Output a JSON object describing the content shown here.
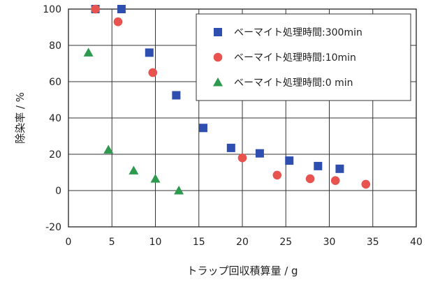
{
  "chart_data": {
    "type": "scatter",
    "title": "",
    "xlabel": "トラップ回収積算量 / g",
    "ylabel": "除染率 / %",
    "xlim": [
      0,
      40
    ],
    "ylim": [
      -20,
      100
    ],
    "xticks": [
      "0",
      "5",
      "10",
      "15",
      "20",
      "25",
      "30",
      "35",
      "40"
    ],
    "yticks": [
      "-20",
      "0",
      "20",
      "40",
      "60",
      "80",
      "100"
    ],
    "grid": true,
    "legend_position": "top-right",
    "series": [
      {
        "name": "ベーマイト処理時間:300min",
        "marker": "square",
        "color": "#2f4fb0",
        "points": [
          [
            3.1,
            100
          ],
          [
            6.1,
            100
          ],
          [
            9.3,
            76
          ],
          [
            12.4,
            52.5
          ],
          [
            15.5,
            34.5
          ],
          [
            18.7,
            23.5
          ],
          [
            22.0,
            20.5
          ],
          [
            25.4,
            16.5
          ],
          [
            28.7,
            13.5
          ],
          [
            31.2,
            12
          ]
        ]
      },
      {
        "name": "ベーマイト処理時間:10min",
        "marker": "circle",
        "color": "#e8534f",
        "points": [
          [
            3.1,
            100
          ],
          [
            5.7,
            93
          ],
          [
            9.7,
            65
          ],
          [
            20.0,
            18
          ],
          [
            24.0,
            8.5
          ],
          [
            27.8,
            6.5
          ],
          [
            30.7,
            5.5
          ],
          [
            34.2,
            3.5
          ]
        ]
      },
      {
        "name": "ベーマイト処理時間:0 min",
        "marker": "triangle",
        "color": "#2e9a4e",
        "points": [
          [
            2.3,
            76
          ],
          [
            4.6,
            22.5
          ],
          [
            7.5,
            11
          ],
          [
            10.0,
            6.5
          ],
          [
            12.7,
            0
          ]
        ]
      }
    ]
  }
}
